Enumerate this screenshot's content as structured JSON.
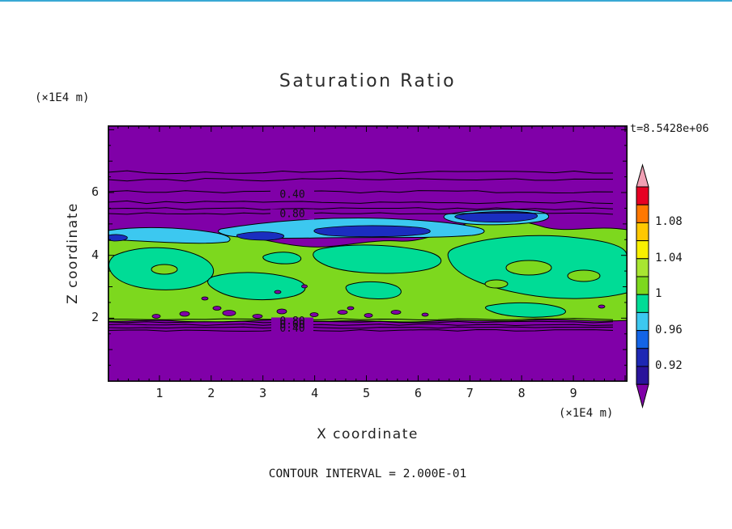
{
  "title": "Saturation Ratio",
  "timestamp": "t=8.5428e+06",
  "footer": "CONTOUR INTERVAL = 2.000E-01",
  "axes": {
    "x": {
      "label": "X coordinate",
      "unit": "(×1E4 m)",
      "ticks": [
        "1",
        "2",
        "3",
        "4",
        "5",
        "6",
        "7",
        "8",
        "9"
      ]
    },
    "y": {
      "label": "Z coordinate",
      "unit": "(×1E4 m)",
      "ticks": [
        "2",
        "4",
        "6"
      ]
    }
  },
  "contour_labels": {
    "upper": [
      "0.40",
      "0.80"
    ],
    "lower": [
      "0.80",
      "0.60",
      "0.40"
    ]
  },
  "colorbar": {
    "labels": [
      "1.08",
      "1.04",
      "1",
      "0.96",
      "0.92"
    ],
    "band_colors": [
      "#e60023",
      "#ff7800",
      "#ffc800",
      "#f8f000",
      "#a8e632",
      "#7dd81e",
      "#00dc96",
      "#3cc8f0",
      "#1464e6",
      "#1e28b4",
      "#2a149b"
    ],
    "arrow_top_color": "#f0a0b4",
    "arrow_bottom_color": "#8000a8"
  },
  "colors": {
    "plot_background_purple": "#8000a8",
    "main_band_green": "#7dd81e",
    "patch_teal": "#00dc96",
    "streak_cyan": "#3cc8f0",
    "streak_blue": "#1a2ec0",
    "top_edge_line": "#38a8d4"
  },
  "chart_data": {
    "type": "heatmap",
    "subtype": "filled-contour-plot",
    "title": "Saturation Ratio",
    "time_annotation": "t=8.5428e+06",
    "xlabel": "X coordinate (×1E4 m)",
    "ylabel": "Z coordinate (×1E4 m)",
    "x_ticks": [
      1,
      2,
      3,
      4,
      5,
      6,
      7,
      8,
      9
    ],
    "y_ticks": [
      2,
      4,
      6
    ],
    "xlim": [
      0,
      10
    ],
    "ylim": [
      0,
      8
    ],
    "grid": false,
    "legend_position": "right colorbar with triangular arrow endcaps",
    "colorbar_tick_values": [
      1.08,
      1.04,
      1.0,
      0.96,
      0.92
    ],
    "contour_interval": 0.2,
    "inline_line_contour_labels": [
      0.4,
      0.8
    ],
    "field_summary": [
      {
        "region": "z above ~5.3 (top band)",
        "value": "< 0.92, purple fill with horizontal line contours labeled 0.40 and 0.80"
      },
      {
        "region": "z ~ 4.6-5.2",
        "value": "0.92-0.96, cyan ribbons with dark blue streak cores"
      },
      {
        "region": "z ~ 2-4.8 (middle band)",
        "value": "~1, green fill with teal (0.96-1) patches and small purple specks near z~2"
      },
      {
        "region": "z below ~2 (bottom band)",
        "value": "< 0.92, purple fill with dense overlapping line contours labeled 0.80/0.60/0.40"
      }
    ]
  }
}
